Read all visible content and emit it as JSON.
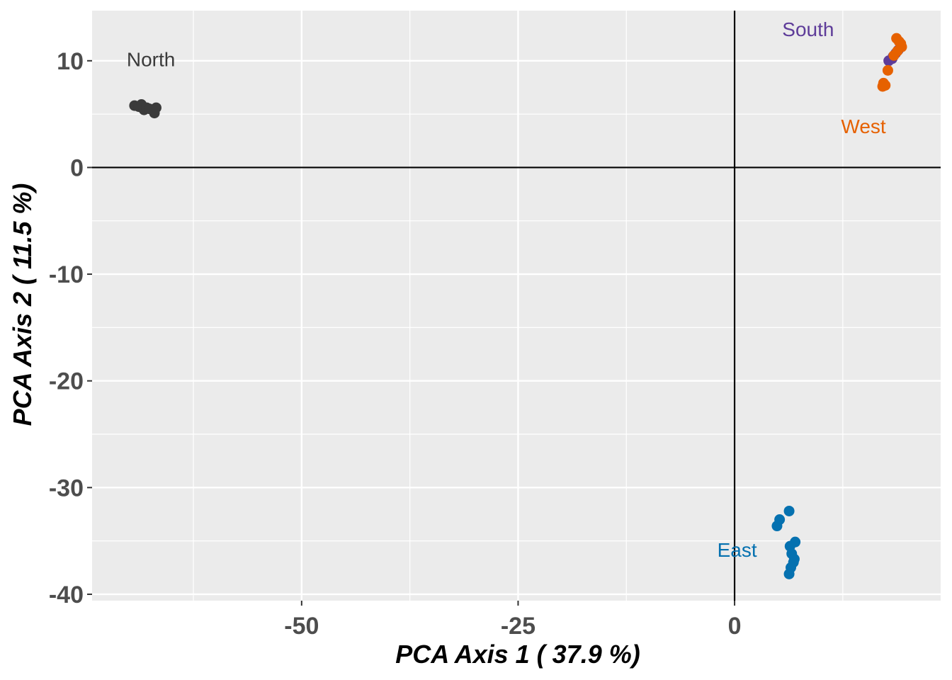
{
  "chart_data": {
    "type": "scatter",
    "xlabel": "PCA Axis 1 ( 37.9 %)",
    "ylabel": "PCA Axis 2 ( 11.5 %)",
    "xlim": [
      -74.2,
      23.8
    ],
    "ylim": [
      -40.6,
      14.7
    ],
    "x_ticks": [
      -50,
      -25,
      0
    ],
    "x_tick_labels": [
      "-50",
      "-25",
      "0"
    ],
    "y_ticks": [
      10,
      0,
      -10,
      -20,
      -30,
      -40
    ],
    "y_tick_labels": [
      "10",
      "0",
      "-10",
      "-20",
      "-30",
      "-40"
    ],
    "grid": true,
    "reference_lines": {
      "x": 0,
      "y": 0
    },
    "series": [
      {
        "name": "North",
        "color": "#3b3b3b",
        "label_pos": {
          "x": -70.2,
          "y": 9.5
        },
        "points": [
          [
            -69.3,
            5.8
          ],
          [
            -68.8,
            5.7
          ],
          [
            -68.5,
            5.9
          ],
          [
            -68.2,
            5.4
          ],
          [
            -67.9,
            5.6
          ],
          [
            -67.6,
            5.5
          ],
          [
            -67.0,
            5.1
          ],
          [
            -66.8,
            5.6
          ]
        ]
      },
      {
        "name": "South",
        "color": "#5e3c99",
        "label_pos": {
          "x": 5.5,
          "y": 12.3
        },
        "points": [
          [
            17.8,
            10.0
          ],
          [
            18.2,
            10.2
          ],
          [
            18.6,
            10.7
          ],
          [
            18.9,
            11.0
          ],
          [
            18.3,
            10.4
          ]
        ]
      },
      {
        "name": "West",
        "color": "#e66100",
        "label_pos": {
          "x": 12.3,
          "y": 3.2
        },
        "points": [
          [
            18.7,
            12.1
          ],
          [
            19.2,
            11.6
          ],
          [
            19.3,
            11.3
          ],
          [
            19.0,
            11.8
          ],
          [
            18.8,
            10.9
          ],
          [
            18.4,
            10.5
          ],
          [
            17.7,
            9.1
          ],
          [
            17.2,
            7.9
          ],
          [
            17.1,
            7.6
          ],
          [
            17.4,
            7.7
          ]
        ]
      },
      {
        "name": "East",
        "color": "#0571b0",
        "label_pos": {
          "x": -2.0,
          "y": -36.5
        },
        "points": [
          [
            6.3,
            -32.2
          ],
          [
            5.2,
            -33.0
          ],
          [
            4.9,
            -33.6
          ],
          [
            7.0,
            -35.1
          ],
          [
            6.4,
            -35.5
          ],
          [
            6.6,
            -36.2
          ],
          [
            6.9,
            -36.7
          ],
          [
            6.8,
            -37.0
          ],
          [
            6.5,
            -37.5
          ],
          [
            6.3,
            -38.1
          ]
        ]
      }
    ]
  }
}
